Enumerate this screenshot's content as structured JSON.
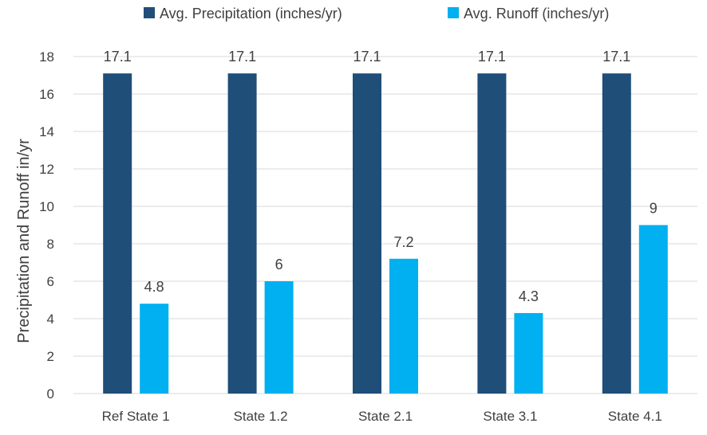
{
  "chart_data": {
    "type": "bar",
    "title": "",
    "xlabel": "",
    "ylabel": "Precipitation and Runoff in/yr",
    "ylim": [
      0,
      18
    ],
    "yticks": [
      0,
      2,
      4,
      6,
      8,
      10,
      12,
      14,
      16,
      18
    ],
    "grid": true,
    "legend_position": "top",
    "categories": [
      "Ref State 1",
      "State 1.2",
      "State 2.1",
      "State 3.1",
      "State 4.1"
    ],
    "series": [
      {
        "name": "Avg. Precipitation (inches/yr)",
        "color": "#1f4e79",
        "values": [
          17.1,
          17.1,
          17.1,
          17.1,
          17.1
        ]
      },
      {
        "name": "Avg. Runoff (inches/yr)",
        "color": "#00b0f0",
        "values": [
          4.8,
          6,
          7.2,
          4.3,
          9
        ]
      }
    ]
  }
}
